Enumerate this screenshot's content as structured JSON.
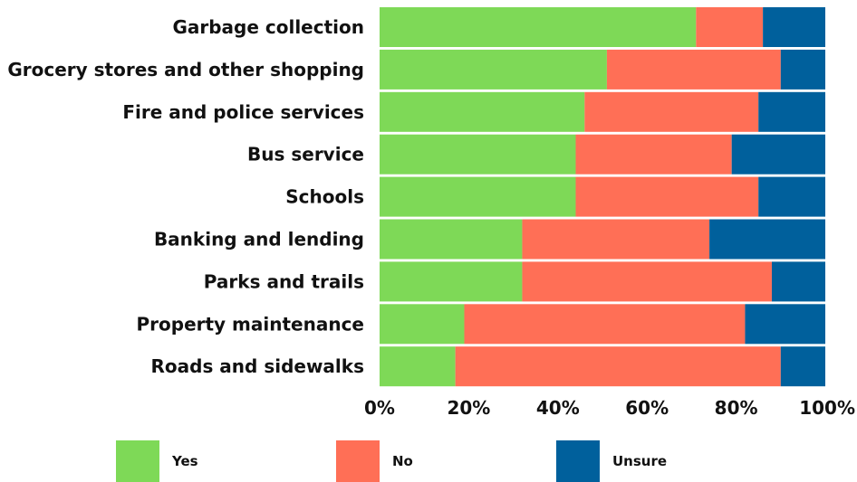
{
  "chart_data": {
    "type": "bar",
    "orientation": "horizontal",
    "stacked": true,
    "normalized": true,
    "categories": [
      "Garbage collection",
      "Grocery stores and other shopping",
      "Fire and police services",
      "Bus service",
      "Schools",
      "Banking and lending",
      "Parks and trails",
      "Property maintenance",
      "Roads and sidewalks"
    ],
    "series": [
      {
        "name": "Yes",
        "color": "#7ED957",
        "values": [
          71,
          51,
          46,
          44,
          44,
          32,
          32,
          19,
          17
        ]
      },
      {
        "name": "No",
        "color": "#FF6F56",
        "values": [
          15,
          39,
          39,
          35,
          41,
          42,
          56,
          63,
          73
        ]
      },
      {
        "name": "Unsure",
        "color": "#00609C",
        "values": [
          14,
          10,
          15,
          21,
          15,
          26,
          12,
          18,
          10
        ]
      }
    ],
    "xlim": [
      0,
      100
    ],
    "x_ticks": [
      "0%",
      "20%",
      "40%",
      "60%",
      "80%",
      "100%"
    ],
    "grid": false,
    "legend_position": "bottom"
  }
}
